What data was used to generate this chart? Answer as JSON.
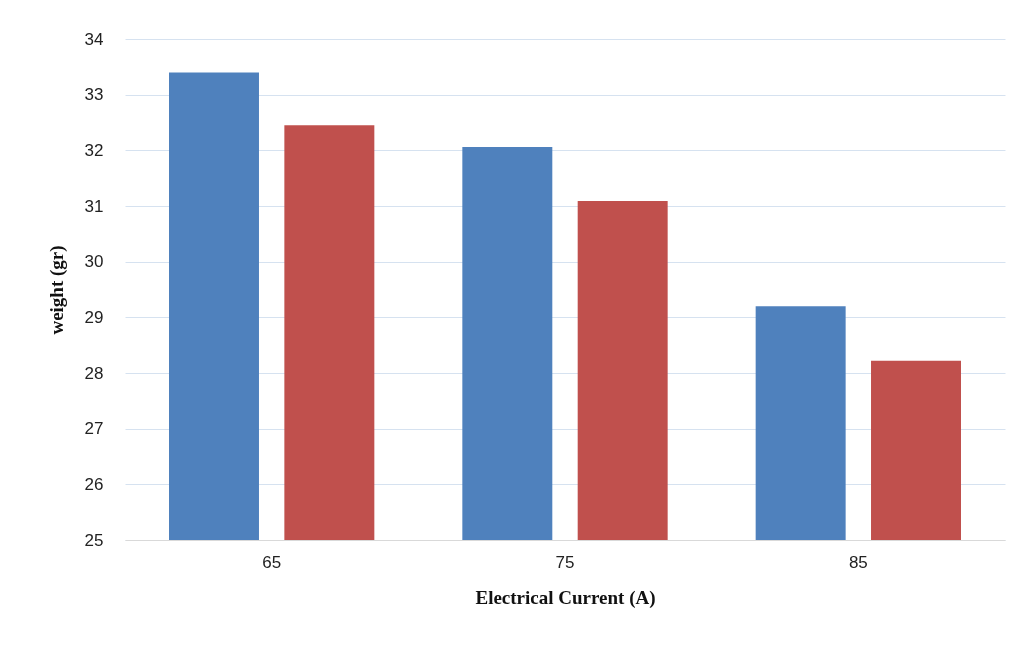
{
  "chart_data": {
    "type": "bar",
    "xlabel": "Electrical Current (A)",
    "ylabel": "weight (gr)",
    "categories": [
      "65",
      "75",
      "85"
    ],
    "series": [
      {
        "color": "#4f81bd",
        "values": [
          33.4,
          32.06,
          29.2
        ]
      },
      {
        "color": "#c0504d",
        "values": [
          32.45,
          31.09,
          28.22
        ]
      }
    ],
    "ylim": [
      25,
      34
    ],
    "yticks": [
      25,
      26,
      27,
      28,
      29,
      30,
      31,
      32,
      33,
      34
    ],
    "grid": "y",
    "legend": false
  }
}
